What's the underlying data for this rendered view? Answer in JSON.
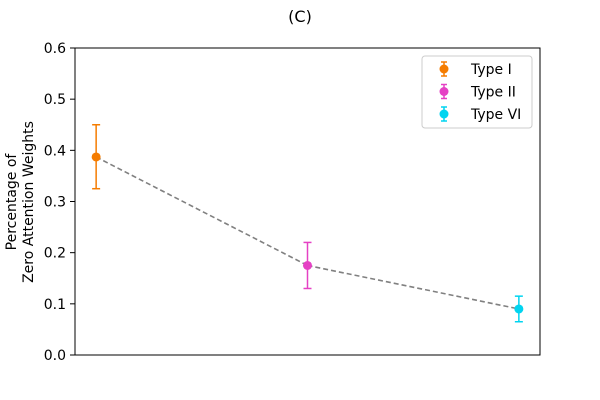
{
  "chart_data": {
    "type": "scatter",
    "title": "(C)",
    "xlabel": "",
    "ylabel": [
      "Percentage of",
      "Zero Attention Weights"
    ],
    "ylim": [
      0,
      0.6
    ],
    "yticks": [
      0.0,
      0.1,
      0.2,
      0.3,
      0.4,
      0.5,
      0.6
    ],
    "ytick_labels": [
      "0.0",
      "0.1",
      "0.2",
      "0.3",
      "0.4",
      "0.5",
      "0.6"
    ],
    "xlim": [
      -0.1,
      2.1
    ],
    "grid": false,
    "legend_position": "top-right",
    "connector": {
      "style": "dashed",
      "color": "#808080"
    },
    "series": [
      {
        "name": "Type I",
        "x": 0,
        "y": 0.387,
        "err_low": 0.325,
        "err_high": 0.45,
        "color": "#f57c00"
      },
      {
        "name": "Type II",
        "x": 1,
        "y": 0.175,
        "err_low": 0.13,
        "err_high": 0.22,
        "color": "#e541c4"
      },
      {
        "name": "Type VI",
        "x": 2,
        "y": 0.09,
        "err_low": 0.065,
        "err_high": 0.115,
        "color": "#00d4f0"
      }
    ]
  }
}
